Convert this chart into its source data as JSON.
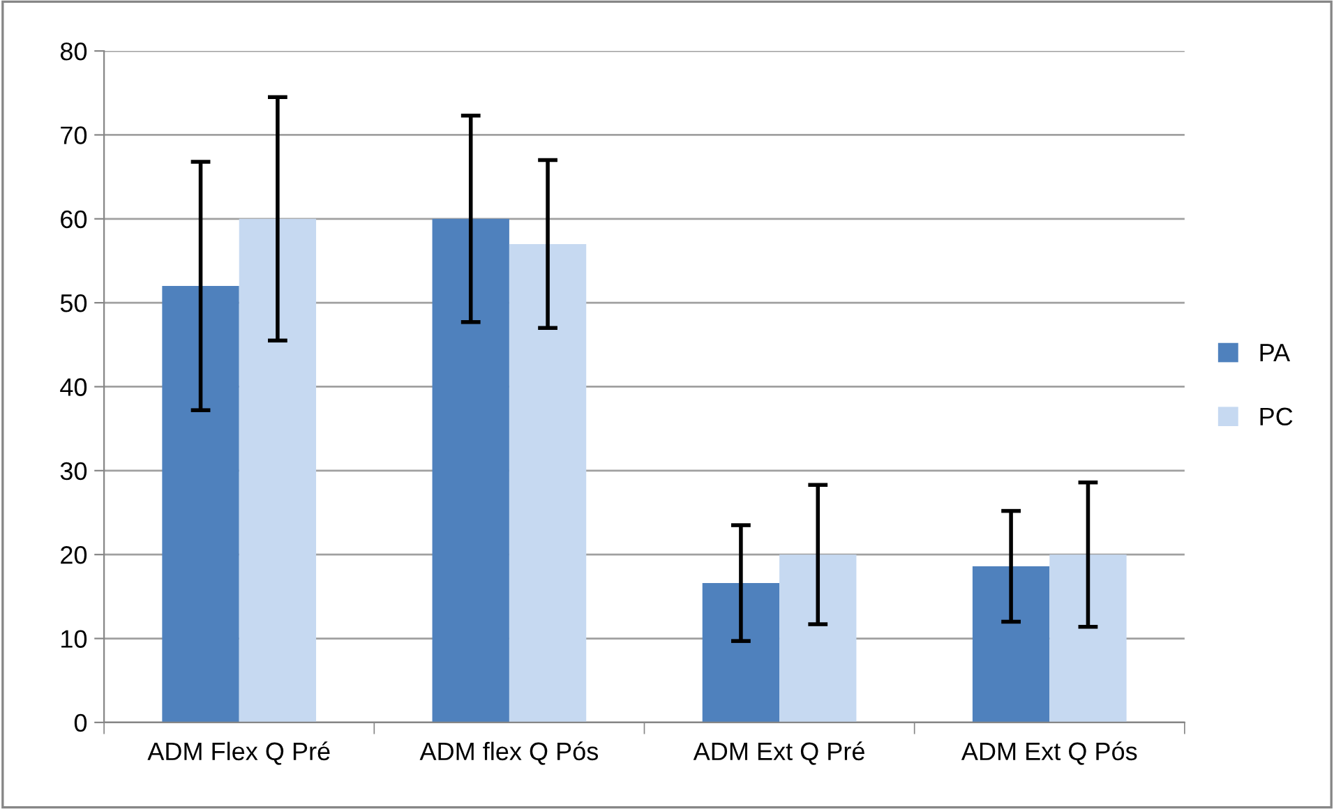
{
  "chart_data": {
    "type": "bar",
    "categories": [
      "ADM Flex Q Pré",
      "ADM flex Q Pós",
      "ADM Ext Q Pré",
      "ADM Ext Q Pós"
    ],
    "series": [
      {
        "name": "PA",
        "color": "#4f81bd",
        "values": [
          52,
          60,
          16.6,
          18.6
        ],
        "errors": [
          14.8,
          12.3,
          6.9,
          6.6
        ]
      },
      {
        "name": "PC",
        "color": "#c6d9f1",
        "values": [
          60,
          57,
          20,
          20
        ],
        "errors": [
          14.5,
          10,
          8.3,
          8.6
        ]
      }
    ],
    "ylim": [
      0,
      80
    ],
    "yticks": [
      0,
      10,
      20,
      30,
      40,
      50,
      60,
      70,
      80
    ],
    "grid": "y",
    "legend": "right"
  }
}
